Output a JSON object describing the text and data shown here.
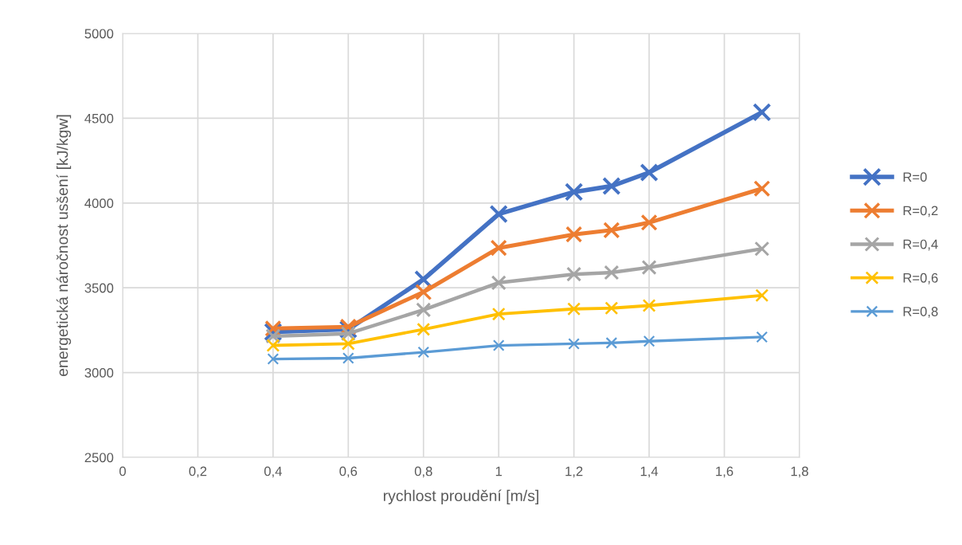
{
  "chart_data": {
    "type": "line",
    "xlabel": "rychlost proudění [m/s]",
    "ylabel": "energetická náročnost usšení [kJ/kgw]",
    "x": [
      0.4,
      0.6,
      0.8,
      1.0,
      1.2,
      1.3,
      1.4,
      1.7
    ],
    "series": [
      {
        "name": "R=0",
        "color": "#4472c4",
        "values": [
          3240,
          3255,
          3550,
          3935,
          4065,
          4100,
          4180,
          4535
        ]
      },
      {
        "name": "R=0,2",
        "color": "#ed7d31",
        "values": [
          3260,
          3270,
          3475,
          3735,
          3815,
          3840,
          3885,
          4085
        ]
      },
      {
        "name": "R=0,4",
        "color": "#a5a5a5",
        "values": [
          3215,
          3230,
          3370,
          3530,
          3580,
          3590,
          3620,
          3730
        ]
      },
      {
        "name": "R=0,6",
        "color": "#ffc000",
        "values": [
          3160,
          3170,
          3255,
          3345,
          3375,
          3380,
          3395,
          3455
        ]
      },
      {
        "name": "R=0,8",
        "color": "#5b9bd5",
        "values": [
          3080,
          3085,
          3120,
          3160,
          3170,
          3175,
          3185,
          3210
        ]
      }
    ],
    "xlim": [
      0,
      1.8
    ],
    "xticks": [
      0,
      {
        "value": 0.2,
        "label": "0,2"
      },
      {
        "value": 0.4,
        "label": "0,4"
      },
      {
        "value": 0.6,
        "label": "0,6"
      },
      {
        "value": 0.8,
        "label": "0,8"
      },
      1,
      {
        "value": 1.2,
        "label": "1,2"
      },
      {
        "value": 1.4,
        "label": "1,4"
      },
      {
        "value": 1.6,
        "label": "1,6"
      },
      {
        "value": 1.8,
        "label": "1,8"
      }
    ],
    "ylim": [
      2500,
      5000
    ],
    "yticks": [
      2500,
      3000,
      3500,
      4000,
      4500,
      5000
    ],
    "grid": true,
    "legend": "right",
    "marker": "cross",
    "line_style": "solid"
  }
}
